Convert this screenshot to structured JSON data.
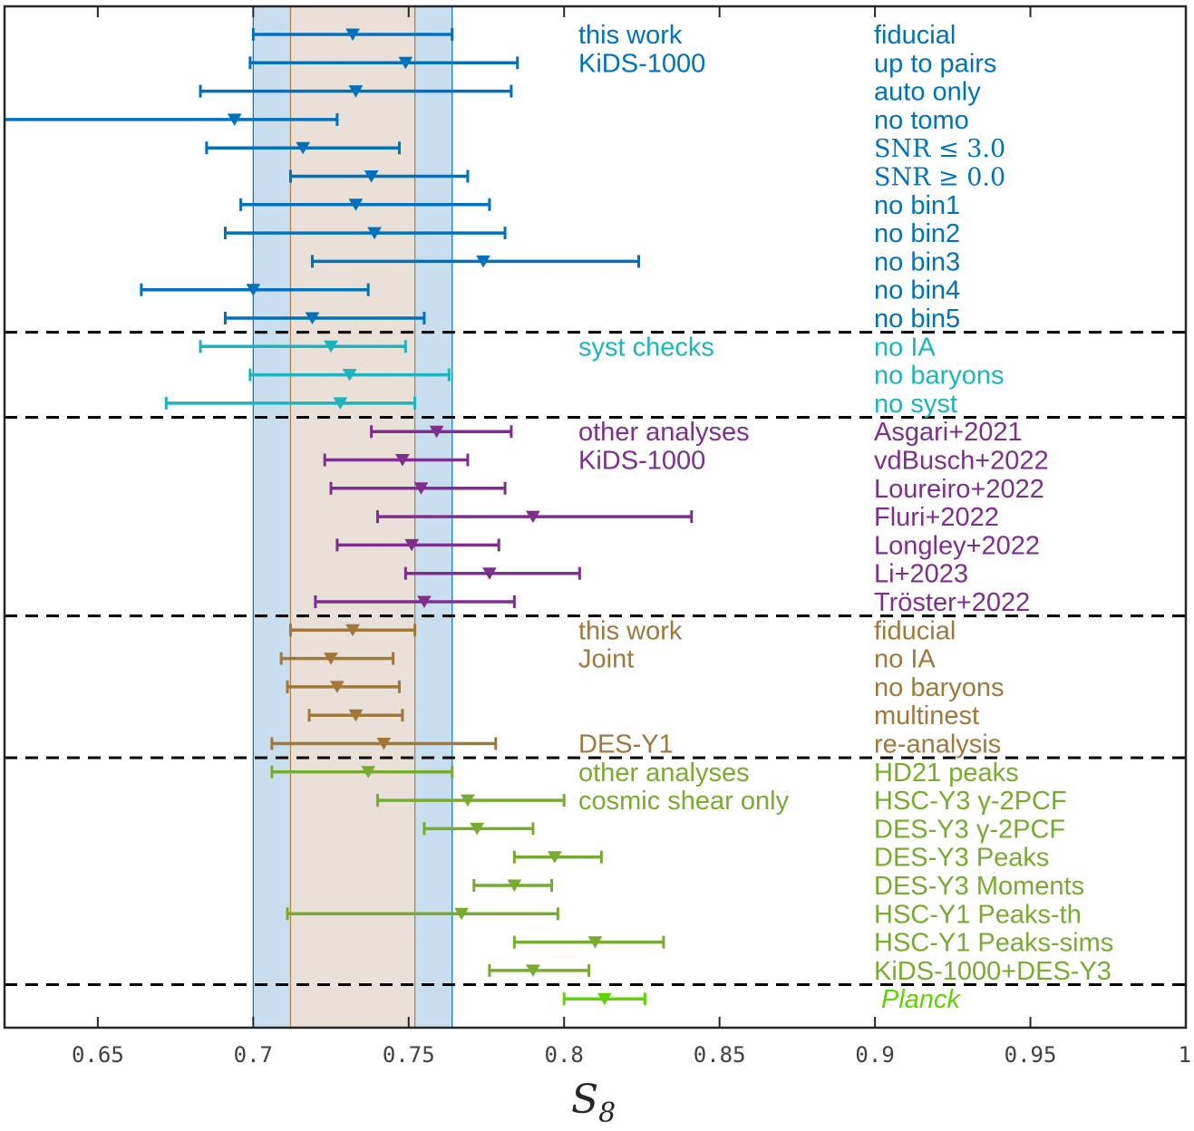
{
  "chart_data": {
    "type": "errorbar",
    "xlabel": "S",
    "xlabel_subscript": "8",
    "xlim": [
      0.62,
      1.0
    ],
    "xticks": [
      0.65,
      0.7,
      0.75,
      0.8,
      0.85,
      0.9,
      0.95,
      1.0
    ],
    "xtick_labels": [
      "0.65",
      "0.7",
      "0.75",
      "0.8",
      "0.85",
      "0.9",
      "0.95",
      "1"
    ],
    "bands": [
      {
        "name": "blue-band",
        "from": 0.7,
        "to": 0.764,
        "color": "#c9dff0",
        "edge": "#0072bd"
      },
      {
        "name": "tan-band",
        "from": 0.712,
        "to": 0.752,
        "color": "#e9e1d7",
        "edge": "#b08040"
      }
    ],
    "separators_after_rows": [
      10,
      13,
      20,
      25,
      33
    ],
    "groups": [
      {
        "key": "kids",
        "color": "#0072bd",
        "group_labels": [
          "this work",
          "KiDS-1000"
        ],
        "label_start_row": 0
      },
      {
        "key": "syst",
        "color": "#1cb5bd",
        "group_labels": [
          "syst checks"
        ],
        "label_start_row": 11
      },
      {
        "key": "other",
        "color": "#7e2f8e",
        "group_labels": [
          "other analyses",
          "KiDS-1000"
        ],
        "label_start_row": 14
      },
      {
        "key": "joint",
        "color": "#a0783c",
        "group_labels": [
          "this work",
          "Joint"
        ],
        "label_start_row": 21
      },
      {
        "key": "des",
        "color": "#a0783c",
        "group_labels": [
          "DES-Y1"
        ],
        "label_start_row": 25
      },
      {
        "key": "shear",
        "color": "#77ac30",
        "group_labels": [
          "other analyses",
          "cosmic shear only"
        ],
        "label_start_row": 26
      },
      {
        "key": "planck",
        "color": "#5fd400",
        "group_labels": [],
        "label_start_row": 34
      }
    ],
    "rows": [
      {
        "label": "fiducial",
        "value": 0.732,
        "low": 0.7,
        "high": 0.764,
        "group": "kids"
      },
      {
        "label": "up to pairs",
        "value": 0.749,
        "low": 0.699,
        "high": 0.785,
        "group": "kids"
      },
      {
        "label": "auto only",
        "value": 0.733,
        "low": 0.683,
        "high": 0.783,
        "group": "kids"
      },
      {
        "label": "no tomo",
        "value": 0.694,
        "low": 0.62,
        "high": 0.727,
        "group": "kids"
      },
      {
        "label": "SNR ≤ 3.0",
        "value": 0.716,
        "low": 0.685,
        "high": 0.747,
        "group": "kids",
        "serif": true
      },
      {
        "label": "SNR ≥ 0.0",
        "value": 0.738,
        "low": 0.712,
        "high": 0.769,
        "group": "kids",
        "serif": true
      },
      {
        "label": "no bin1",
        "value": 0.733,
        "low": 0.696,
        "high": 0.776,
        "group": "kids"
      },
      {
        "label": "no bin2",
        "value": 0.739,
        "low": 0.691,
        "high": 0.781,
        "group": "kids"
      },
      {
        "label": "no bin3",
        "value": 0.774,
        "low": 0.719,
        "high": 0.824,
        "group": "kids"
      },
      {
        "label": "no bin4",
        "value": 0.7,
        "low": 0.664,
        "high": 0.737,
        "group": "kids"
      },
      {
        "label": "no bin5",
        "value": 0.719,
        "low": 0.691,
        "high": 0.755,
        "group": "kids"
      },
      {
        "label": "no IA",
        "value": 0.725,
        "low": 0.683,
        "high": 0.749,
        "group": "syst"
      },
      {
        "label": "no baryons",
        "value": 0.731,
        "low": 0.699,
        "high": 0.763,
        "group": "syst"
      },
      {
        "label": "no syst",
        "value": 0.728,
        "low": 0.672,
        "high": 0.752,
        "group": "syst"
      },
      {
        "label": "Asgari+2021",
        "value": 0.759,
        "low": 0.738,
        "high": 0.783,
        "group": "other"
      },
      {
        "label": "vdBusch+2022",
        "value": 0.748,
        "low": 0.723,
        "high": 0.769,
        "group": "other"
      },
      {
        "label": "Loureiro+2022",
        "value": 0.754,
        "low": 0.725,
        "high": 0.781,
        "group": "other"
      },
      {
        "label": "Fluri+2022",
        "value": 0.79,
        "low": 0.74,
        "high": 0.841,
        "group": "other"
      },
      {
        "label": "Longley+2022",
        "value": 0.751,
        "low": 0.727,
        "high": 0.779,
        "group": "other"
      },
      {
        "label": "Li+2023",
        "value": 0.776,
        "low": 0.749,
        "high": 0.805,
        "group": "other"
      },
      {
        "label": "Tröster+2022",
        "value": 0.755,
        "low": 0.72,
        "high": 0.784,
        "group": "other"
      },
      {
        "label": "fiducial",
        "value": 0.732,
        "low": 0.712,
        "high": 0.752,
        "group": "joint"
      },
      {
        "label": "no IA",
        "value": 0.725,
        "low": 0.709,
        "high": 0.745,
        "group": "joint"
      },
      {
        "label": "no baryons",
        "value": 0.727,
        "low": 0.711,
        "high": 0.747,
        "group": "joint"
      },
      {
        "label": "multinest",
        "value": 0.733,
        "low": 0.718,
        "high": 0.748,
        "group": "joint"
      },
      {
        "label": "re-analysis",
        "value": 0.742,
        "low": 0.706,
        "high": 0.778,
        "group": "des"
      },
      {
        "label": "HD21 peaks",
        "value": 0.737,
        "low": 0.706,
        "high": 0.764,
        "group": "shear"
      },
      {
        "label": "HSC-Y3 γ-2PCF",
        "value": 0.769,
        "low": 0.74,
        "high": 0.8,
        "group": "shear"
      },
      {
        "label": "DES-Y3 γ-2PCF",
        "value": 0.772,
        "low": 0.755,
        "high": 0.79,
        "group": "shear"
      },
      {
        "label": "DES-Y3 Peaks",
        "value": 0.797,
        "low": 0.784,
        "high": 0.812,
        "group": "shear"
      },
      {
        "label": "DES-Y3 Moments",
        "value": 0.784,
        "low": 0.771,
        "high": 0.796,
        "group": "shear"
      },
      {
        "label": "HSC-Y1 Peaks-th",
        "value": 0.767,
        "low": 0.711,
        "high": 0.798,
        "group": "shear"
      },
      {
        "label": "HSC-Y1 Peaks-sims",
        "value": 0.81,
        "low": 0.784,
        "high": 0.832,
        "group": "shear"
      },
      {
        "label": "KiDS-1000+DES-Y3",
        "value": 0.79,
        "low": 0.776,
        "high": 0.808,
        "group": "shear"
      },
      {
        "label": "Planck",
        "value": 0.813,
        "low": 0.8,
        "high": 0.826,
        "group": "planck",
        "italic": true
      }
    ]
  }
}
